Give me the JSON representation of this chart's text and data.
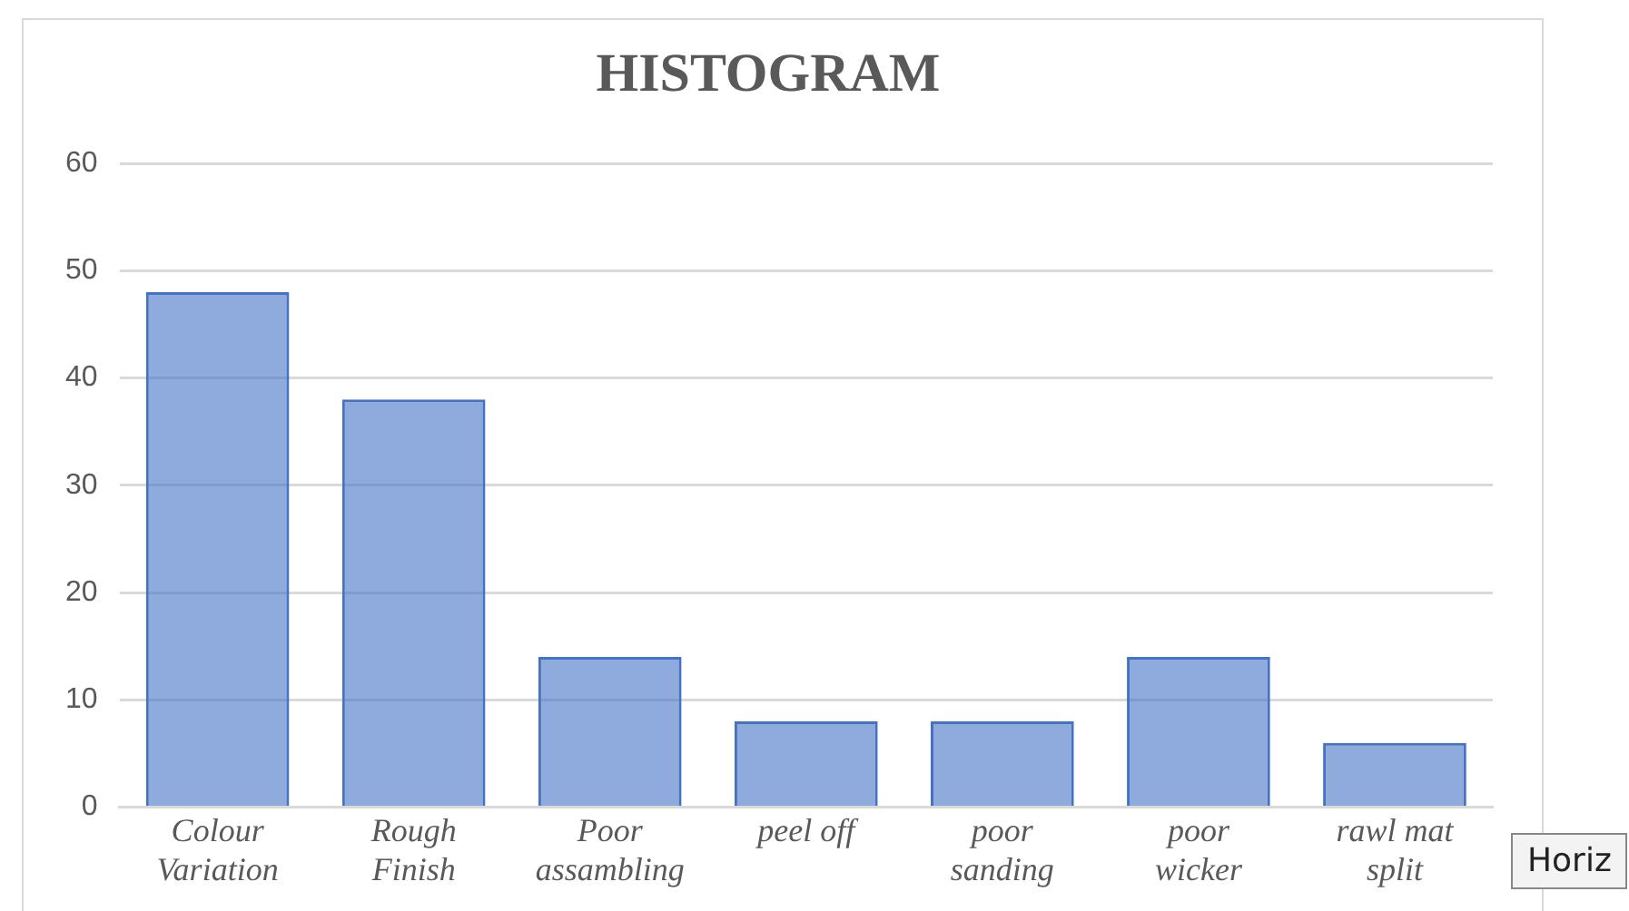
{
  "chart_data": {
    "type": "bar",
    "title": "HISTOGRAM",
    "categories": [
      "Colour Variation",
      "Rough Finish",
      "Poor assambling",
      "peel off",
      "poor sanding",
      "poor wicker",
      "rawl mat split"
    ],
    "values": [
      48,
      38,
      14,
      8,
      8,
      14,
      6
    ],
    "color": "#4472c4",
    "ylim": [
      0,
      60
    ],
    "yticks": [
      0,
      10,
      20,
      30,
      40,
      50,
      60
    ],
    "grid": "y",
    "annotations": [
      "Horiz"
    ]
  }
}
